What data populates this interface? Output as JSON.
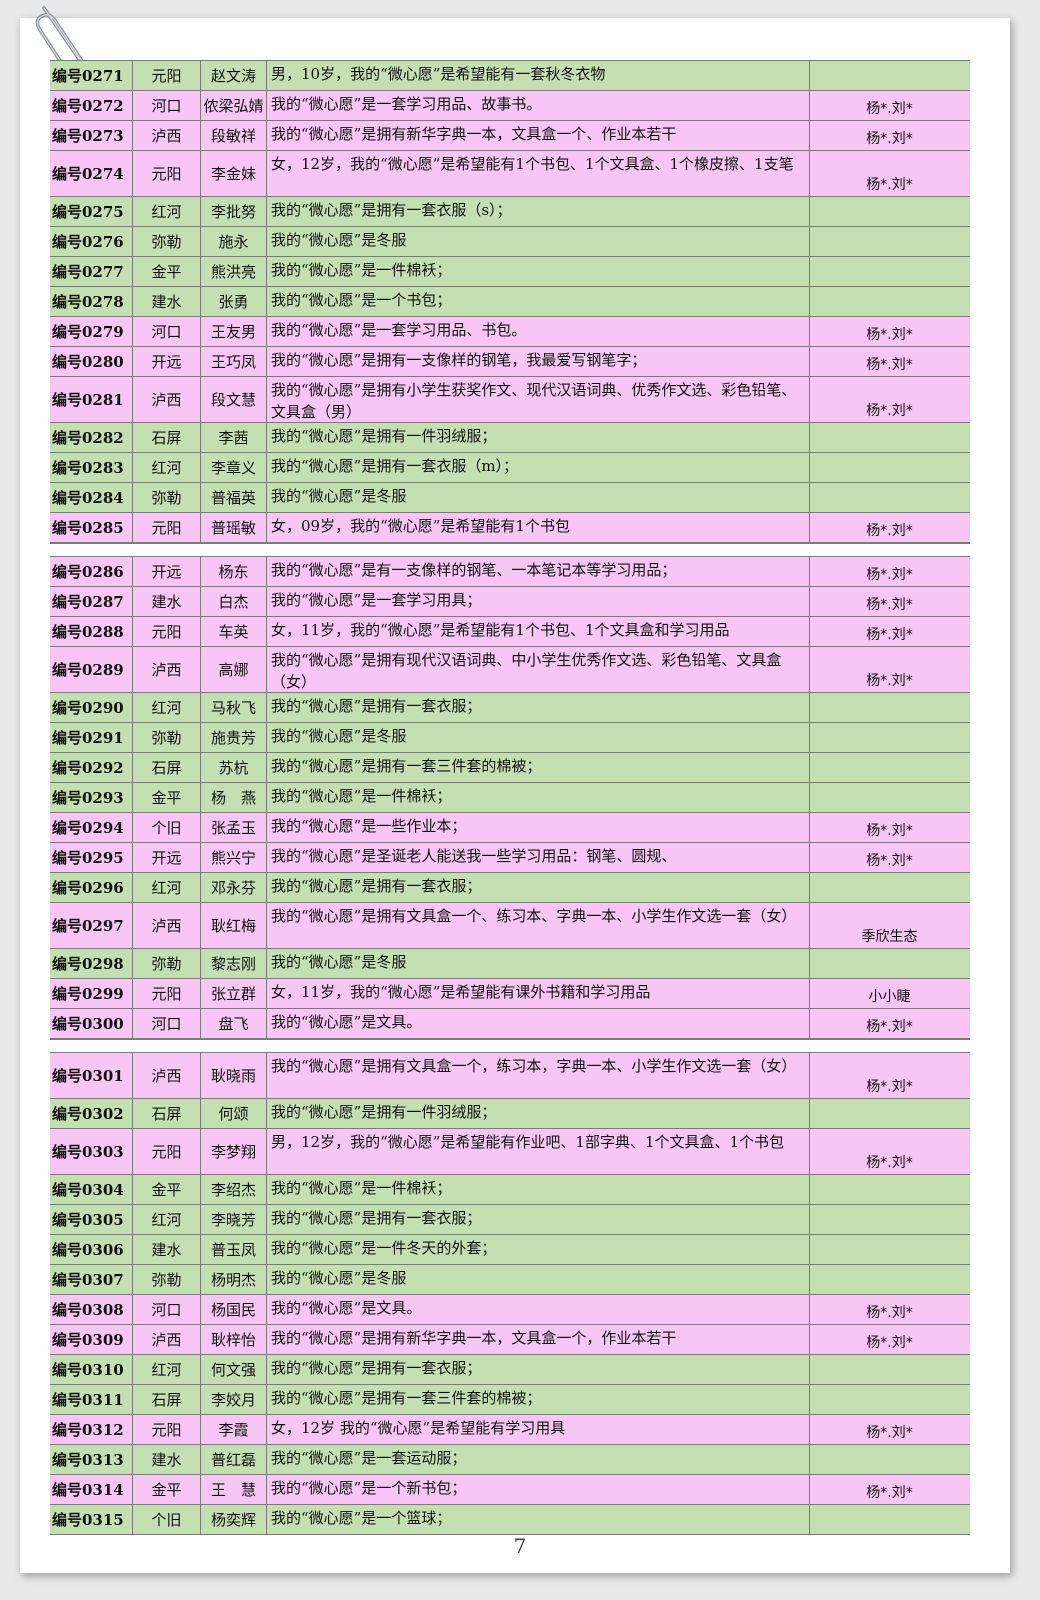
{
  "page_number": "7",
  "groups": [
    {
      "rows": [
        {
          "id": "编号0271",
          "region": "元阳",
          "name": "赵文涛",
          "wish": "男，10岁，我的“微心愿”是希望能有一套秋冬衣物",
          "donor": "",
          "color": "green",
          "tall": false
        },
        {
          "id": "编号0272",
          "region": "河口",
          "name": "侬梁弘婧",
          "wish": "我的“微心愿”是一套学习用品、故事书。",
          "donor": "杨*.刘*",
          "color": "pink",
          "tall": false
        },
        {
          "id": "编号0273",
          "region": "泸西",
          "name": "段敏祥",
          "wish": "我的“微心愿”是拥有新华字典一本，文具盒一个、作业本若干",
          "donor": "杨*.刘*",
          "color": "pink",
          "tall": false
        },
        {
          "id": "编号0274",
          "region": "元阳",
          "name": "李金妹",
          "wish": "女，12岁，我的“微心愿”是希望能有1个书包、1个文具盒、1个橡皮擦、1支笔",
          "donor": "杨*.刘*",
          "color": "pink",
          "tall": true
        },
        {
          "id": "编号0275",
          "region": "红河",
          "name": "李批努",
          "wish": "我的“微心愿”是拥有一套衣服（s）；",
          "donor": "",
          "color": "green",
          "tall": false
        },
        {
          "id": "编号0276",
          "region": "弥勒",
          "name": "施永",
          "wish": "我的“微心愿”是冬服",
          "donor": "",
          "color": "green",
          "tall": false
        },
        {
          "id": "编号0277",
          "region": "金平",
          "name": "熊洪亮",
          "wish": "我的“微心愿”是一件棉袄；",
          "donor": "",
          "color": "green",
          "tall": false
        },
        {
          "id": "编号0278",
          "region": "建水",
          "name": "张勇",
          "wish": "我的“微心愿”是一个书包；",
          "donor": "",
          "color": "green",
          "tall": false
        },
        {
          "id": "编号0279",
          "region": "河口",
          "name": "王友男",
          "wish": "我的“微心愿”是一套学习用品、书包。",
          "donor": "杨*.刘*",
          "color": "pink",
          "tall": false
        },
        {
          "id": "编号0280",
          "region": "开远",
          "name": "王巧凤",
          "wish": "我的“微心愿”是拥有一支像样的钢笔，我最爱写钢笔字；",
          "donor": "杨*.刘*",
          "color": "pink",
          "tall": false
        },
        {
          "id": "编号0281",
          "region": "泸西",
          "name": "段文慧",
          "wish": "我的“微心愿”是拥有小学生获奖作文、现代汉语词典、优秀作文选、彩色铅笔、文具盒（男）",
          "donor": "杨*.刘*",
          "color": "pink",
          "tall": true
        },
        {
          "id": "编号0282",
          "region": "石屏",
          "name": "李茜",
          "wish": "我的“微心愿”是拥有一件羽绒服；",
          "donor": "",
          "color": "green",
          "tall": false
        },
        {
          "id": "编号0283",
          "region": "红河",
          "name": "李章义",
          "wish": "我的“微心愿”是拥有一套衣服（m）；",
          "donor": "",
          "color": "green",
          "tall": false
        },
        {
          "id": "编号0284",
          "region": "弥勒",
          "name": "普福英",
          "wish": "我的“微心愿”是冬服",
          "donor": "",
          "color": "green",
          "tall": false
        },
        {
          "id": "编号0285",
          "region": "元阳",
          "name": "普瑶敏",
          "wish": "女，09岁，我的“微心愿”是希望能有1个书包",
          "donor": "杨*.刘*",
          "color": "pink",
          "tall": false
        }
      ]
    },
    {
      "rows": [
        {
          "id": "编号0286",
          "region": "开远",
          "name": "杨东",
          "wish": "我的“微心愿”是有一支像样的钢笔、一本笔记本等学习用品；",
          "donor": "杨*.刘*",
          "color": "pink",
          "tall": false
        },
        {
          "id": "编号0287",
          "region": "建水",
          "name": "白杰",
          "wish": "我的“微心愿”是一套学习用具；",
          "donor": "杨*.刘*",
          "color": "pink",
          "tall": false
        },
        {
          "id": "编号0288",
          "region": "元阳",
          "name": "车英",
          "wish": "女，11岁，我的“微心愿”是希望能有1个书包、1个文具盒和学习用品",
          "donor": "杨*.刘*",
          "color": "pink",
          "tall": false
        },
        {
          "id": "编号0289",
          "region": "泸西",
          "name": "高娜",
          "wish": "我的“微心愿”是拥有现代汉语词典、中小学生优秀作文选、彩色铅笔、文具盒（女）",
          "donor": "杨*.刘*",
          "color": "pink",
          "tall": true
        },
        {
          "id": "编号0290",
          "region": "红河",
          "name": "马秋飞",
          "wish": "我的“微心愿”是拥有一套衣服；",
          "donor": "",
          "color": "green",
          "tall": false
        },
        {
          "id": "编号0291",
          "region": "弥勒",
          "name": "施贵芳",
          "wish": "我的“微心愿”是冬服",
          "donor": "",
          "color": "green",
          "tall": false
        },
        {
          "id": "编号0292",
          "region": "石屏",
          "name": "苏杭",
          "wish": "我的“微心愿”是拥有一套三件套的棉被；",
          "donor": "",
          "color": "green",
          "tall": false
        },
        {
          "id": "编号0293",
          "region": "金平",
          "name": "杨　燕",
          "wish": "我的“微心愿”是一件棉袄；",
          "donor": "",
          "color": "green",
          "tall": false
        },
        {
          "id": "编号0294",
          "region": "个旧",
          "name": "张孟玉",
          "wish": "我的“微心愿”是一些作业本；",
          "donor": "杨*.刘*",
          "color": "pink",
          "tall": false
        },
        {
          "id": "编号0295",
          "region": "开远",
          "name": "熊兴宁",
          "wish": "我的“微心愿”是圣诞老人能送我一些学习用品：钢笔、圆规、",
          "donor": "杨*.刘*",
          "color": "pink",
          "tall": false
        },
        {
          "id": "编号0296",
          "region": "红河",
          "name": "邓永芬",
          "wish": "我的“微心愿”是拥有一套衣服；",
          "donor": "",
          "color": "green",
          "tall": false
        },
        {
          "id": "编号0297",
          "region": "泸西",
          "name": "耿红梅",
          "wish": "我的“微心愿”是拥有文具盒一个、练习本、字典一本、小学生作文选一套（女）",
          "donor": "季欣生态",
          "color": "pink",
          "tall": true
        },
        {
          "id": "编号0298",
          "region": "弥勒",
          "name": "黎志刚",
          "wish": "我的“微心愿”是冬服",
          "donor": "",
          "color": "green",
          "tall": false
        },
        {
          "id": "编号0299",
          "region": "元阳",
          "name": "张立群",
          "wish": "女，11岁，我的“微心愿”是希望能有课外书籍和学习用品",
          "donor": "小小睫",
          "color": "pink",
          "tall": false
        },
        {
          "id": "编号0300",
          "region": "河口",
          "name": "盘飞",
          "wish": "我的“微心愿”是文具。",
          "donor": "杨*.刘*",
          "color": "pink",
          "tall": false
        }
      ]
    },
    {
      "rows": [
        {
          "id": "编号0301",
          "region": "泸西",
          "name": "耿晓雨",
          "wish": "我的“微心愿”是拥有文具盒一个，练习本，字典一本、小学生作文选一套（女）",
          "donor": "杨*.刘*",
          "color": "pink",
          "tall": true
        },
        {
          "id": "编号0302",
          "region": "石屏",
          "name": "何颂",
          "wish": "我的“微心愿”是拥有一件羽绒服；",
          "donor": "",
          "color": "green",
          "tall": false
        },
        {
          "id": "编号0303",
          "region": "元阳",
          "name": "李梦翔",
          "wish": "男，12岁，我的“微心愿”是希望能有作业吧、1部字典、1个文具盒、1个书包",
          "donor": "杨*.刘*",
          "color": "pink",
          "tall": true
        },
        {
          "id": "编号0304",
          "region": "金平",
          "name": "李绍杰",
          "wish": "我的“微心愿”是一件棉袄；",
          "donor": "",
          "color": "green",
          "tall": false
        },
        {
          "id": "编号0305",
          "region": "红河",
          "name": "李晓芳",
          "wish": "我的“微心愿”是拥有一套衣服；",
          "donor": "",
          "color": "green",
          "tall": false
        },
        {
          "id": "编号0306",
          "region": "建水",
          "name": "普玉凤",
          "wish": "我的“微心愿”是一件冬天的外套；",
          "donor": "",
          "color": "green",
          "tall": false
        },
        {
          "id": "编号0307",
          "region": "弥勒",
          "name": "杨明杰",
          "wish": "我的“微心愿”是冬服",
          "donor": "",
          "color": "green",
          "tall": false
        },
        {
          "id": "编号0308",
          "region": "河口",
          "name": "杨国民",
          "wish": "我的“微心愿”是文具。",
          "donor": "杨*.刘*",
          "color": "pink",
          "tall": false
        },
        {
          "id": "编号0309",
          "region": "泸西",
          "name": "耿梓怡",
          "wish": "我的“微心愿”是拥有新华字典一本，文具盒一个，作业本若干",
          "donor": "杨*.刘*",
          "color": "pink",
          "tall": false
        },
        {
          "id": "编号0310",
          "region": "红河",
          "name": "何文强",
          "wish": "我的“微心愿”是拥有一套衣服；",
          "donor": "",
          "color": "green",
          "tall": false
        },
        {
          "id": "编号0311",
          "region": "石屏",
          "name": "李姣月",
          "wish": "我的“微心愿”是拥有一套三件套的棉被；",
          "donor": "",
          "color": "green",
          "tall": false
        },
        {
          "id": "编号0312",
          "region": "元阳",
          "name": "李霞",
          "wish": "女，12岁 我的“微心愿”是希望能有学习用具",
          "donor": "杨*.刘*",
          "color": "pink",
          "tall": false
        },
        {
          "id": "编号0313",
          "region": "建水",
          "name": "普红磊",
          "wish": "我的“微心愿”是一套运动服；",
          "donor": "",
          "color": "green",
          "tall": false
        },
        {
          "id": "编号0314",
          "region": "金平",
          "name": "王　慧",
          "wish": "我的“微心愿”是一个新书包；",
          "donor": "杨*.刘*",
          "color": "pink",
          "tall": false
        },
        {
          "id": "编号0315",
          "region": "个旧",
          "name": "杨奕辉",
          "wish": "我的“微心愿”是一个篮球；",
          "donor": "",
          "color": "green",
          "tall": false
        }
      ]
    }
  ]
}
